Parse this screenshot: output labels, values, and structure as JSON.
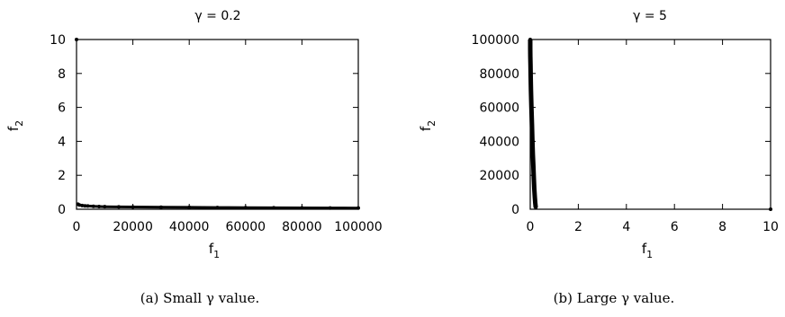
{
  "chart_data": [
    {
      "type": "scatter",
      "title": "γ = 0.2",
      "xlabel": "f",
      "xlabel_sub": "1",
      "ylabel": "f",
      "ylabel_sub": "2",
      "xlim": [
        0,
        100000
      ],
      "ylim": [
        0,
        10
      ],
      "xticks": [
        "0",
        "20000",
        "40000",
        "60000",
        "80000",
        "100000"
      ],
      "yticks": [
        "0",
        "2",
        "4",
        "6",
        "8",
        "10"
      ],
      "caption": "(a) Small γ value.",
      "series": [
        {
          "color": "#000000",
          "x": [
            0,
            500,
            1000,
            2000,
            3000,
            4000,
            6000,
            8000,
            10000,
            15000,
            20000,
            30000,
            40000,
            50000,
            60000,
            70000,
            80000,
            90000,
            100000
          ],
          "y": [
            10,
            0.3,
            0.25,
            0.22,
            0.2,
            0.19,
            0.17,
            0.16,
            0.15,
            0.14,
            0.13,
            0.12,
            0.11,
            0.1,
            0.09,
            0.085,
            0.08,
            0.075,
            0.07
          ]
        }
      ]
    },
    {
      "type": "scatter",
      "title": "γ = 5",
      "xlabel": "f",
      "xlabel_sub": "1",
      "ylabel": "f",
      "ylabel_sub": "2",
      "xlim": [
        0,
        10
      ],
      "ylim": [
        0,
        100000
      ],
      "xticks": [
        "0",
        "2",
        "4",
        "6",
        "8",
        "10"
      ],
      "yticks": [
        "0",
        "20000",
        "40000",
        "60000",
        "80000",
        "100000"
      ],
      "caption": "(b) Large γ value.",
      "series": [
        {
          "color": "#000000",
          "x": [
            0.0,
            0.0,
            0.005,
            0.01,
            0.02,
            0.03,
            0.05,
            0.07,
            0.09,
            0.11,
            0.13,
            0.15,
            0.17,
            0.19,
            0.21,
            0.23,
            10
          ],
          "y": [
            100000,
            95000,
            90000,
            85000,
            78000,
            70000,
            60000,
            50000,
            40000,
            32000,
            25000,
            18000,
            12000,
            7000,
            3500,
            1000,
            0
          ]
        }
      ]
    }
  ]
}
